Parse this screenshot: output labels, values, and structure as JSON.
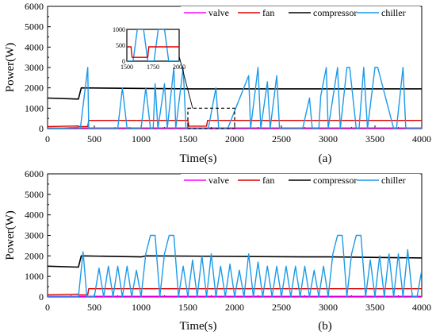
{
  "chart_data": [
    {
      "type": "line",
      "panel_label": "(a)",
      "xlabel": "Time(s)",
      "ylabel": "Power(W)",
      "xlim": [
        0,
        4000
      ],
      "ylim": [
        0,
        6000
      ],
      "xticks": [
        0,
        500,
        1000,
        1500,
        2000,
        2500,
        3000,
        3500,
        4000
      ],
      "yticks": [
        0,
        1000,
        2000,
        3000,
        4000,
        5000,
        6000
      ],
      "legend": "top-right",
      "series": [
        {
          "name": "valve",
          "color": "#ff00ff",
          "x": [
            0,
            4000
          ],
          "y": [
            30,
            30
          ]
        },
        {
          "name": "fan",
          "color": "#e00000",
          "x": [
            0,
            330,
            340,
            430,
            440,
            1500,
            1510,
            1700,
            1710,
            4000
          ],
          "y": [
            100,
            130,
            100,
            100,
            400,
            400,
            120,
            120,
            400,
            400
          ]
        },
        {
          "name": "compressor",
          "color": "#000000",
          "x": [
            0,
            330,
            360,
            1550,
            4000
          ],
          "y": [
            1500,
            1450,
            2000,
            1950,
            1950
          ]
        },
        {
          "name": "chiller",
          "color": "#1b9ae8",
          "x": [
            0,
            330,
            350,
            430,
            440,
            470,
            700,
            720,
            750,
            800,
            850,
            870,
            950,
            970,
            1000,
            1050,
            1100,
            1130,
            1150,
            1180,
            1250,
            1280,
            1350,
            1370,
            1450,
            1480,
            1500,
            1700,
            1720,
            1800,
            1830,
            1900,
            1930,
            2150,
            2170,
            2250,
            2280,
            2350,
            2380,
            2450,
            2480,
            2700,
            2730,
            2800,
            2830,
            2900,
            2920,
            2980,
            3000,
            3100,
            3130,
            3200,
            3230,
            3300,
            3330,
            3380,
            3420,
            3500,
            3530,
            3700,
            3730,
            3800,
            3830,
            3900,
            3950,
            4000
          ],
          "y": [
            0,
            60,
            0,
            3000,
            0,
            0,
            0,
            50,
            0,
            2000,
            0,
            50,
            0,
            0,
            0,
            2000,
            0,
            50,
            2200,
            0,
            2200,
            0,
            3000,
            0,
            3000,
            0,
            0,
            0,
            50,
            2000,
            0,
            0,
            50,
            2600,
            0,
            3000,
            0,
            2300,
            0,
            2600,
            0,
            0,
            50,
            1500,
            0,
            0,
            1600,
            3000,
            0,
            3000,
            0,
            3000,
            3000,
            0,
            0,
            3000,
            0,
            3000,
            3000,
            0,
            0,
            3000,
            0,
            0,
            0,
            0
          ]
        }
      ],
      "inset": {
        "xlim": [
          1500,
          2000
        ],
        "ylim": [
          0,
          1000
        ],
        "xticks": [
          1500,
          1750,
          2000
        ],
        "yticks": [
          0,
          500,
          1000
        ],
        "fan": {
          "x": [
            1500,
            1540,
            1550,
            1700,
            1710,
            2000
          ],
          "y": [
            450,
            450,
            120,
            120,
            450,
            450
          ]
        },
        "chiller": {
          "x": [
            1500,
            1560,
            1600,
            1660,
            1700,
            1760,
            1800,
            1860,
            1900,
            1960,
            2000
          ],
          "y": [
            0,
            0,
            1000,
            1000,
            0,
            0,
            1000,
            1000,
            0,
            0,
            0
          ]
        }
      }
    },
    {
      "type": "line",
      "panel_label": "(b)",
      "xlabel": "Time(s)",
      "ylabel": "Power(W)",
      "xlim": [
        0,
        4000
      ],
      "ylim": [
        0,
        6000
      ],
      "xticks": [
        0,
        500,
        1000,
        1500,
        2000,
        2500,
        3000,
        3500,
        4000
      ],
      "yticks": [
        0,
        1000,
        2000,
        3000,
        4000,
        5000,
        6000
      ],
      "legend": "top-right",
      "series": [
        {
          "name": "valve",
          "color": "#ff00ff",
          "x": [
            0,
            4000
          ],
          "y": [
            30,
            30
          ]
        },
        {
          "name": "fan",
          "color": "#e00000",
          "x": [
            0,
            330,
            340,
            430,
            440,
            4000
          ],
          "y": [
            100,
            130,
            100,
            100,
            400,
            400
          ]
        },
        {
          "name": "compressor",
          "color": "#000000",
          "x": [
            0,
            330,
            360,
            1000,
            1050,
            2800,
            3000,
            4000
          ],
          "y": [
            1500,
            1450,
            2000,
            1950,
            2000,
            1950,
            1950,
            1900
          ]
        },
        {
          "name": "chiller",
          "color": "#1b9ae8",
          "x": [
            0,
            330,
            380,
            420,
            500,
            550,
            600,
            650,
            700,
            750,
            800,
            850,
            900,
            950,
            1000,
            1050,
            1100,
            1150,
            1200,
            1250,
            1300,
            1350,
            1400,
            1450,
            1500,
            1550,
            1600,
            1650,
            1700,
            1750,
            1800,
            1850,
            1900,
            1950,
            2000,
            2050,
            2100,
            2150,
            2200,
            2250,
            2300,
            2350,
            2400,
            2450,
            2500,
            2550,
            2600,
            2650,
            2700,
            2750,
            2800,
            2850,
            2900,
            2950,
            3000,
            3050,
            3100,
            3150,
            3200,
            3250,
            3300,
            3350,
            3400,
            3450,
            3500,
            3550,
            3600,
            3650,
            3700,
            3750,
            3800,
            3850,
            3900,
            3950,
            4000
          ],
          "y": [
            0,
            0,
            2200,
            0,
            0,
            1400,
            0,
            1500,
            0,
            1500,
            0,
            1500,
            0,
            1300,
            0,
            2100,
            3000,
            3000,
            0,
            2100,
            3000,
            3000,
            0,
            1500,
            0,
            1800,
            0,
            2000,
            0,
            2100,
            0,
            1500,
            0,
            1600,
            0,
            1300,
            0,
            2100,
            0,
            1700,
            0,
            1500,
            0,
            1500,
            0,
            1500,
            0,
            1500,
            0,
            1500,
            0,
            1300,
            0,
            1500,
            0,
            2100,
            3000,
            3000,
            0,
            2100,
            3000,
            3000,
            0,
            1800,
            0,
            2000,
            0,
            2100,
            0,
            2100,
            0,
            2300,
            0,
            0,
            1300
          ]
        }
      ]
    }
  ]
}
